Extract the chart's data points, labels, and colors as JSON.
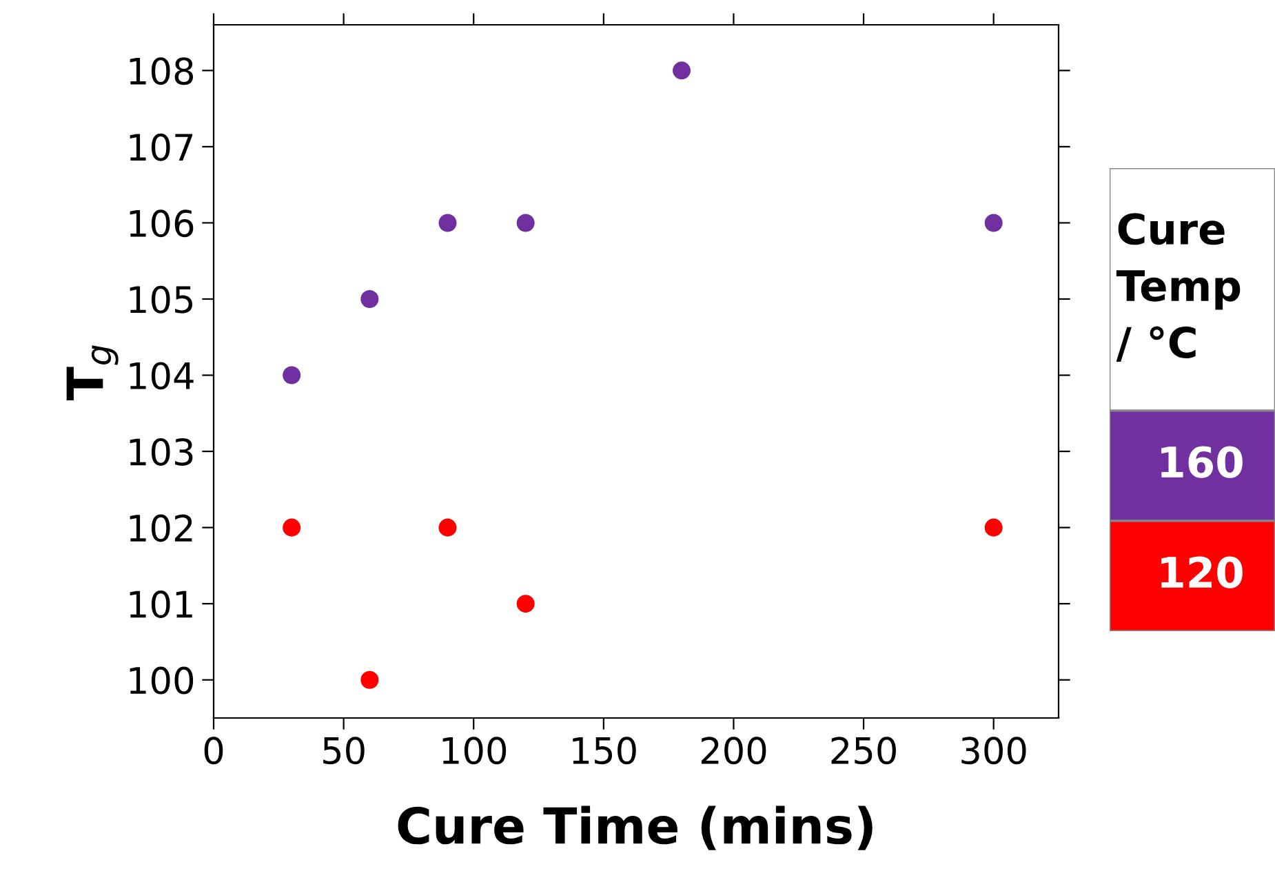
{
  "chart_data": {
    "type": "scatter",
    "xlabel": "Cure Time (mins)",
    "ylabel": "T$_{g}$",
    "legend_title": "Cure\nTemp\n/ °C",
    "legend": "right",
    "marker": "circle",
    "grid": false,
    "xlim": [
      0,
      325
    ],
    "xticks": [
      0,
      50,
      100,
      150,
      200,
      250,
      300
    ],
    "ylim": [
      99.5,
      108.6
    ],
    "yticks": [
      100,
      101,
      102,
      103,
      104,
      105,
      106,
      107,
      108
    ],
    "series": [
      {
        "name": "160",
        "color": "#7030a0",
        "x": [
          30,
          60,
          90,
          120,
          180,
          300
        ],
        "values": [
          104,
          105,
          106,
          106,
          108,
          106
        ]
      },
      {
        "name": "120",
        "color": "#ff0000",
        "x": [
          30,
          60,
          90,
          120,
          300
        ],
        "values": [
          102,
          100,
          102,
          101,
          102
        ]
      }
    ]
  }
}
